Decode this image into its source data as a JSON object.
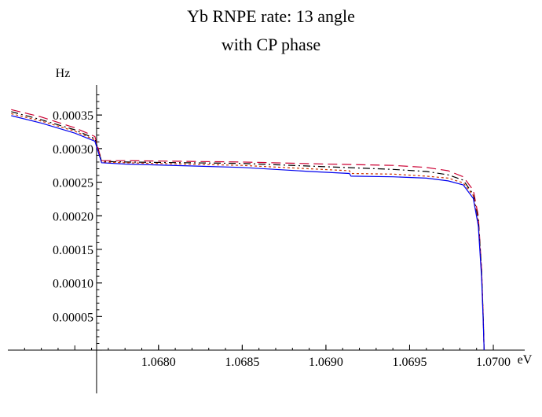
{
  "chart_data": {
    "type": "line",
    "title": "Yb RNPE rate: 13 angle",
    "subtitle": "with CP phase",
    "xlabel": "eV",
    "ylabel": "Hz",
    "xlim": [
      1.0671,
      1.07015
    ],
    "ylim": [
      -1.52e-05,
      0.000383
    ],
    "x_ticks": [
      1.068,
      1.0685,
      1.069,
      1.0695,
      1.07
    ],
    "x_tick_labels": [
      "1.0680",
      "1.0685",
      "1.0690",
      "1.0695",
      "1.0700"
    ],
    "y_ticks": [
      5e-05,
      0.0001,
      0.00015,
      0.0002,
      0.00025,
      0.0003,
      0.00035
    ],
    "y_tick_labels": [
      "0.00005",
      "0.00010",
      "0.00015",
      "0.00020",
      "0.00025",
      "0.00030",
      "0.00035"
    ],
    "grid": false,
    "legend": "none",
    "series": [
      {
        "color": "#cc0033",
        "dash": "12,6",
        "points": [
          [
            1.06712,
            0.000358
          ],
          [
            1.0673,
            0.000347
          ],
          [
            1.0675,
            0.000331
          ],
          [
            1.06762,
            0.000318
          ],
          [
            1.06766,
            0.000282
          ],
          [
            1.0678,
            0.000282
          ],
          [
            1.0685,
            0.00028
          ],
          [
            1.069,
            0.000277
          ],
          [
            1.0694,
            0.000275
          ],
          [
            1.0696,
            0.000272
          ],
          [
            1.06973,
            0.000267
          ],
          [
            1.06982,
            0.000258
          ],
          [
            1.06988,
            0.000238
          ],
          [
            1.06991,
            0.0002
          ],
          [
            1.06993,
            0.00012
          ],
          [
            1.06994,
            5e-05
          ],
          [
            1.069945,
            0.0
          ]
        ]
      },
      {
        "color": "#000000",
        "dash": "9,4,2,4",
        "points": [
          [
            1.06712,
            0.000355
          ],
          [
            1.0673,
            0.000343
          ],
          [
            1.0675,
            0.000328
          ],
          [
            1.06762,
            0.000315
          ],
          [
            1.06766,
            0.000281
          ],
          [
            1.0678,
            0.00028
          ],
          [
            1.0685,
            0.000278
          ],
          [
            1.069,
            0.000273
          ],
          [
            1.0694,
            0.000269
          ],
          [
            1.0696,
            0.000266
          ],
          [
            1.06973,
            0.000261
          ],
          [
            1.06982,
            0.000253
          ],
          [
            1.06988,
            0.000232
          ],
          [
            1.06991,
            0.000195
          ],
          [
            1.06993,
            0.000118
          ],
          [
            1.06994,
            4.8e-05
          ],
          [
            1.069945,
            0.0
          ]
        ]
      },
      {
        "color": "#cc3300",
        "dash": "3,3",
        "points": [
          [
            1.06712,
            0.000352
          ],
          [
            1.0673,
            0.000341
          ],
          [
            1.0675,
            0.000326
          ],
          [
            1.06762,
            0.000313
          ],
          [
            1.06766,
            0.00028
          ],
          [
            1.0678,
            0.000279
          ],
          [
            1.0685,
            0.000275
          ],
          [
            1.0689,
            0.00027
          ],
          [
            1.06914,
            0.000267
          ],
          [
            1.06915,
            0.000263
          ],
          [
            1.0694,
            0.000262
          ],
          [
            1.0696,
            0.000259
          ],
          [
            1.06973,
            0.000256
          ],
          [
            1.06982,
            0.000249
          ],
          [
            1.06988,
            0.00023
          ],
          [
            1.06991,
            0.00019
          ],
          [
            1.06993,
            0.000112
          ],
          [
            1.06994,
            4.5e-05
          ],
          [
            1.069945,
            0.0
          ]
        ]
      },
      {
        "color": "#0000ee",
        "dash": "",
        "points": [
          [
            1.06712,
            0.000349
          ],
          [
            1.0673,
            0.000338
          ],
          [
            1.0675,
            0.000323
          ],
          [
            1.06762,
            0.000311
          ],
          [
            1.06766,
            0.000279
          ],
          [
            1.0678,
            0.000277
          ],
          [
            1.0685,
            0.000272
          ],
          [
            1.0689,
            0.000266
          ],
          [
            1.06914,
            0.000263
          ],
          [
            1.06915,
            0.000259
          ],
          [
            1.0694,
            0.000258
          ],
          [
            1.0696,
            0.000256
          ],
          [
            1.06973,
            0.000252
          ],
          [
            1.06982,
            0.000246
          ],
          [
            1.06988,
            0.000226
          ],
          [
            1.06991,
            0.000185
          ],
          [
            1.06993,
            0.000108
          ],
          [
            1.06994,
            4.2e-05
          ],
          [
            1.069945,
            0.0
          ]
        ]
      }
    ]
  }
}
